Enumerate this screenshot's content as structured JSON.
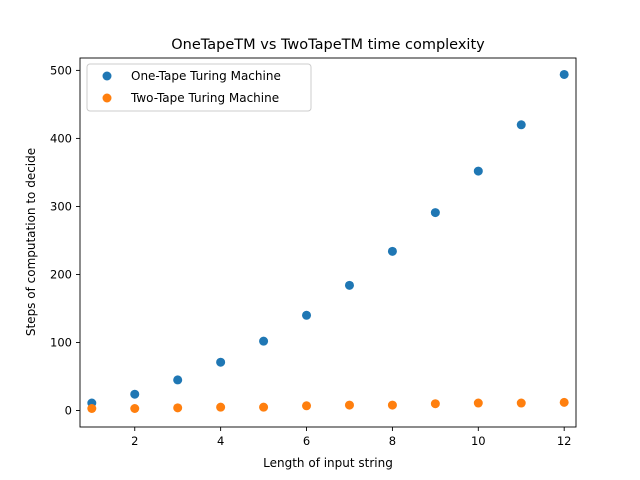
{
  "chart_data": {
    "type": "scatter",
    "title": "OneTapeTM vs TwoTapeTM time complexity",
    "xlabel": "Length of input string",
    "ylabel": "Steps of computation to decide",
    "xlim": [
      0.725,
      12.275
    ],
    "ylim": [
      -24.2,
      518.2
    ],
    "xticks": [
      2,
      4,
      6,
      8,
      10,
      12
    ],
    "yticks": [
      0,
      100,
      200,
      300,
      400,
      500
    ],
    "legend_position": "top-left",
    "grid": false,
    "series": [
      {
        "name": "One-Tape Turing Machine",
        "color": "#1f77b4",
        "x": [
          1,
          2,
          3,
          4,
          5,
          6,
          7,
          8,
          9,
          10,
          11,
          12
        ],
        "y": [
          11,
          24,
          45,
          71,
          102,
          140,
          184,
          234,
          291,
          352,
          420,
          494
        ]
      },
      {
        "name": "Two-Tape Turing Machine",
        "color": "#ff7f0e",
        "x": [
          1,
          2,
          3,
          4,
          5,
          6,
          7,
          8,
          9,
          10,
          11,
          12
        ],
        "y": [
          3,
          3,
          4,
          5,
          5,
          7,
          8,
          8,
          10,
          11,
          11,
          12
        ]
      }
    ]
  }
}
